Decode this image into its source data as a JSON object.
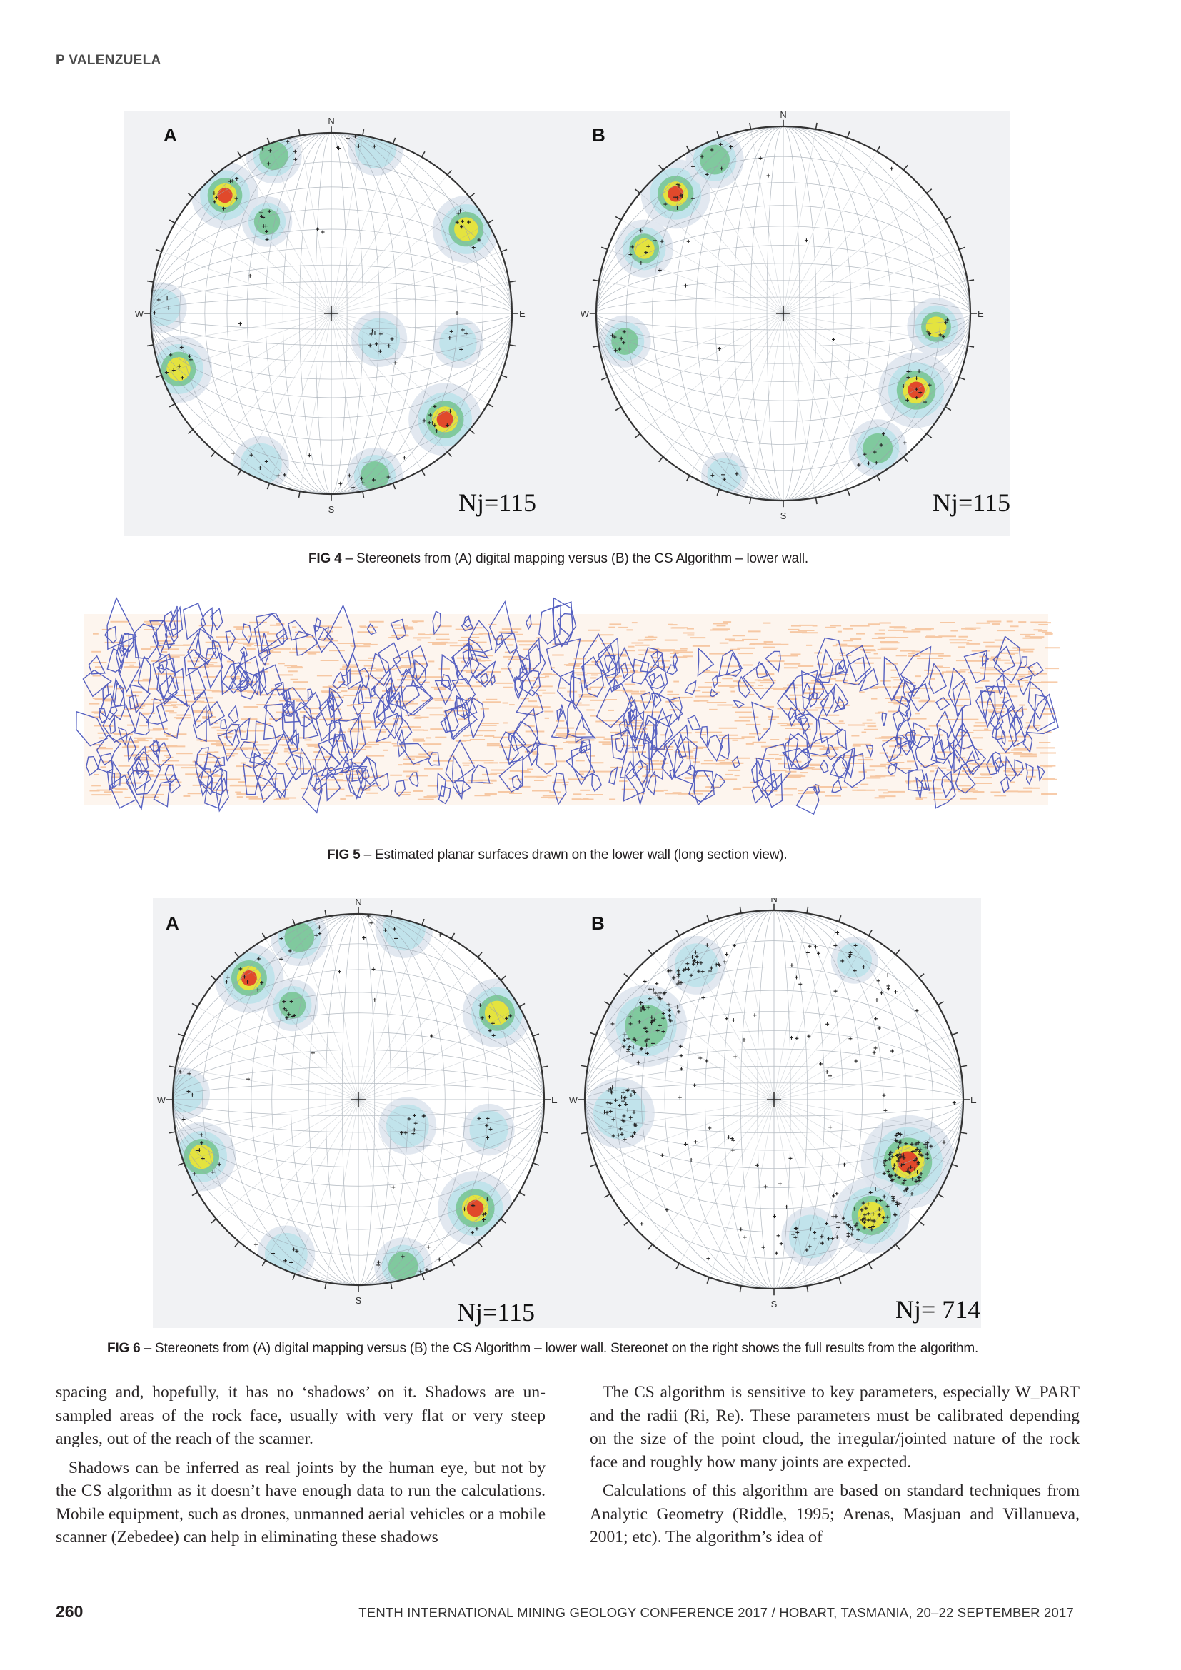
{
  "running_head": "P VALENZUELA",
  "figures": {
    "fig4": {
      "panels": [
        {
          "label": "A",
          "count": "Nj=115",
          "directions": {
            "n": "N",
            "e": "E",
            "s": "S",
            "w": "W"
          }
        },
        {
          "label": "B",
          "count": "Nj=115",
          "directions": {
            "n": "N",
            "e": "E",
            "s": "S",
            "w": "W"
          }
        }
      ],
      "caption_label": "FIG 4",
      "caption_text": " – Stereonets from (A) digital mapping versus (B) the CS Algorithm – lower wall."
    },
    "fig5": {
      "caption_label": "FIG 5",
      "caption_text": " – Estimated planar surfaces drawn on the lower wall (long section view)."
    },
    "fig6": {
      "panels": [
        {
          "label": "A",
          "count": "Nj=115",
          "directions": {
            "n": "N",
            "e": "E",
            "s": "S",
            "w": "W"
          }
        },
        {
          "label": "B",
          "count": "Nj= 714",
          "directions": {
            "n": "N",
            "e": "E",
            "s": "S",
            "w": "W"
          }
        }
      ],
      "caption_label": "FIG 6",
      "caption_text": " – Stereonets from (A) digital mapping versus (B) the CS Algorithm – lower wall. Stereonet on the right shows the full results from the algorithm."
    }
  },
  "body": {
    "left_column": [
      "spacing and, hopefully, it has no ‘shadows’ on it. Shadows are un-sampled areas of the rock face, usually with very flat or very steep angles, out of the reach of the scanner.",
      "Shadows can be inferred as real joints by the human eye, but not by the CS algorithm as it doesn’t have enough data to run the calculations. Mobile equipment, such as drones, unmanned aerial vehicles or a mobile scanner (Zebedee) can help in eliminating these shadows"
    ],
    "right_column": [
      "The CS algorithm is sensitive to key parameters, especially W_PART and the radii (Ri, Re). These parameters must be calibrated depending on the size of the point cloud, the irregular/jointed nature of the rock face and roughly how many joints are expected.",
      "Calculations of this algorithm are based on standard techniques from Analytic Geometry (Riddle, 1995; Arenas, Masjuan and Villanueva, 2001; etc). The algorithm’s idea of"
    ]
  },
  "footer": {
    "page_number": "260",
    "conference": "TENTH INTERNATIONAL MINING GEOLOGY CONFERENCE 2017  /  HOBART, TASMANIA, 20–22 SEPTEMBER 2017"
  }
}
